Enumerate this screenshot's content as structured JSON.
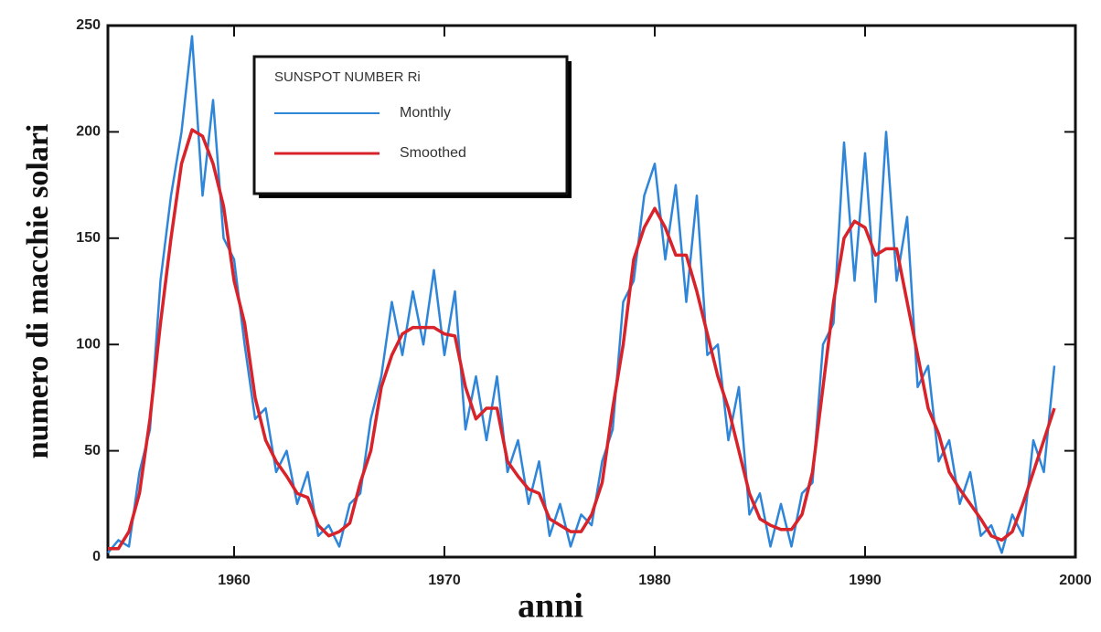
{
  "chart_data": {
    "type": "line",
    "x_label": "anni",
    "y_label": "numero di macchie solari",
    "legend_title": "SUNSPOT NUMBER Ri",
    "legend_position": "upper left",
    "xlim": [
      1954,
      2000
    ],
    "xticks": [
      1960,
      1970,
      1980,
      1990,
      2000
    ],
    "ylim": [
      0,
      250
    ],
    "yticks": [
      0,
      50,
      100,
      150,
      200,
      250
    ],
    "x": [
      1954,
      1954.5,
      1955,
      1955.5,
      1956,
      1956.5,
      1957,
      1957.5,
      1958,
      1958.5,
      1959,
      1959.5,
      1960,
      1960.5,
      1961,
      1961.5,
      1962,
      1962.5,
      1963,
      1963.5,
      1964,
      1964.5,
      1965,
      1965.5,
      1966,
      1966.5,
      1967,
      1967.5,
      1968,
      1968.5,
      1969,
      1969.5,
      1970,
      1970.5,
      1971,
      1971.5,
      1972,
      1972.5,
      1973,
      1973.5,
      1974,
      1974.5,
      1975,
      1975.5,
      1976,
      1976.5,
      1977,
      1977.5,
      1978,
      1978.5,
      1979,
      1979.5,
      1980,
      1980.5,
      1981,
      1981.5,
      1982,
      1982.5,
      1983,
      1983.5,
      1984,
      1984.5,
      1985,
      1985.5,
      1986,
      1986.5,
      1987,
      1987.5,
      1988,
      1988.5,
      1989,
      1989.5,
      1990,
      1990.5,
      1991,
      1991.5,
      1992,
      1992.5,
      1993,
      1993.5,
      1994,
      1994.5,
      1995,
      1995.5,
      1996,
      1996.5,
      1997,
      1997.5,
      1998,
      1998.5,
      1999
    ],
    "series": [
      {
        "name": "Monthly",
        "color": "#2f86d8",
        "values": [
          2,
          8,
          5,
          40,
          60,
          130,
          170,
          200,
          245,
          170,
          215,
          150,
          140,
          100,
          65,
          70,
          40,
          50,
          25,
          40,
          10,
          15,
          5,
          25,
          30,
          65,
          85,
          120,
          95,
          125,
          100,
          135,
          95,
          125,
          60,
          85,
          55,
          85,
          40,
          55,
          25,
          45,
          10,
          25,
          5,
          20,
          15,
          45,
          60,
          120,
          130,
          170,
          185,
          140,
          175,
          120,
          170,
          95,
          100,
          55,
          80,
          20,
          30,
          5,
          25,
          5,
          30,
          35,
          100,
          110,
          195,
          130,
          190,
          120,
          200,
          130,
          160,
          80,
          90,
          45,
          55,
          25,
          40,
          10,
          15,
          2,
          20,
          10,
          55,
          40,
          90
        ]
      },
      {
        "name": "Smoothed",
        "color": "#d8232a",
        "values": [
          4,
          4,
          12,
          30,
          65,
          110,
          150,
          185,
          201,
          198,
          185,
          165,
          130,
          110,
          75,
          55,
          45,
          38,
          30,
          28,
          15,
          10,
          12,
          16,
          35,
          50,
          80,
          95,
          105,
          108,
          108,
          108,
          105,
          104,
          80,
          65,
          70,
          70,
          45,
          38,
          32,
          30,
          18,
          15,
          12,
          12,
          20,
          35,
          70,
          100,
          140,
          155,
          164,
          155,
          142,
          142,
          125,
          105,
          85,
          70,
          50,
          30,
          18,
          15,
          13,
          13,
          20,
          40,
          80,
          120,
          150,
          158,
          155,
          142,
          145,
          145,
          120,
          95,
          70,
          58,
          40,
          32,
          25,
          18,
          10,
          8,
          12,
          25,
          40,
          55,
          70
        ]
      }
    ]
  }
}
